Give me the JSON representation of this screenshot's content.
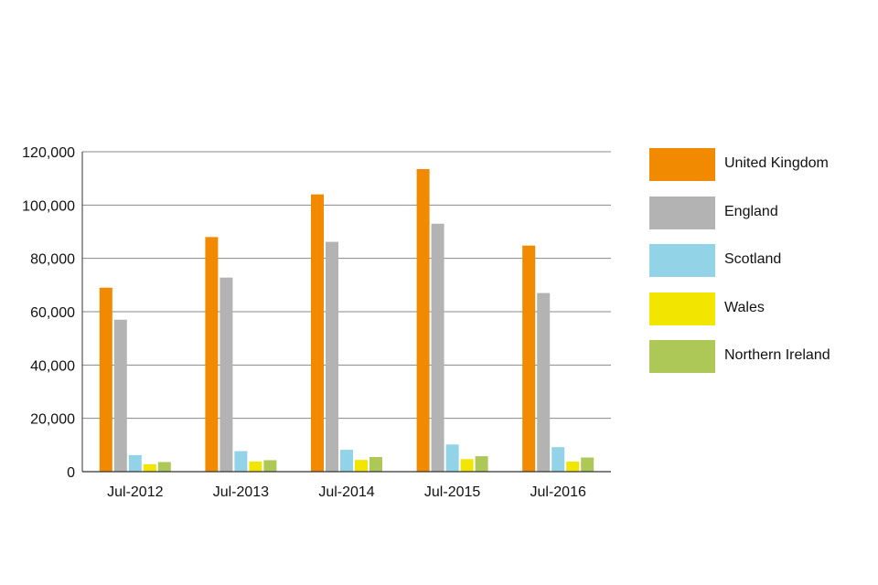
{
  "chart_data": {
    "type": "bar",
    "title": "",
    "xlabel": "",
    "ylabel": "",
    "ylim": [
      0,
      120000
    ],
    "y_ticks": [
      0,
      20000,
      40000,
      60000,
      80000,
      100000,
      120000
    ],
    "y_tick_labels": [
      "0",
      "20,000",
      "40,000",
      "60,000",
      "80,000",
      "100,000",
      "120,000"
    ],
    "grid": true,
    "legend_position": "right",
    "categories": [
      "Jul-2012",
      "Jul-2013",
      "Jul-2014",
      "Jul-2015",
      "Jul-2016"
    ],
    "series": [
      {
        "name": "United Kingdom",
        "color": "#f28a00",
        "values": [
          69000,
          88000,
          104000,
          113500,
          84800
        ]
      },
      {
        "name": "England",
        "color": "#b3b3b3",
        "values": [
          57000,
          72800,
          86200,
          93000,
          67000
        ]
      },
      {
        "name": "Scotland",
        "color": "#93d3e8",
        "values": [
          6200,
          7700,
          8200,
          10200,
          9200
        ]
      },
      {
        "name": "Wales",
        "color": "#f2e500",
        "values": [
          2800,
          3800,
          4400,
          4700,
          3800
        ]
      },
      {
        "name": "Northern Ireland",
        "color": "#adc856",
        "values": [
          3600,
          4300,
          5500,
          5800,
          5300
        ]
      }
    ]
  }
}
